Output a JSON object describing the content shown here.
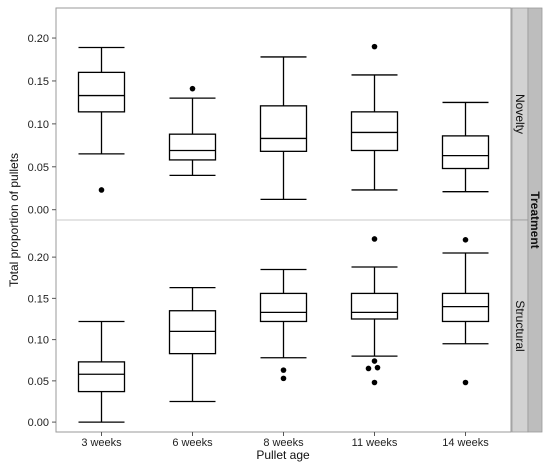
{
  "chart_data": {
    "type": "boxplot",
    "xlabel": "Pullet age",
    "ylabel": "Total proportion of pullets",
    "facet_label": "Treatment",
    "categories": [
      "3 weeks",
      "6 weeks",
      "8 weeks",
      "11 weeks",
      "14 weeks"
    ],
    "yticks": [
      "0.00",
      "0.05",
      "0.10",
      "0.15",
      "0.20"
    ],
    "grid": false,
    "panels": [
      {
        "name": "Novelty",
        "ylim": [
          -0.012,
          0.235
        ],
        "boxes": [
          {
            "category": "3 weeks",
            "whisker_low": 0.065,
            "q1": 0.114,
            "median": 0.133,
            "q3": 0.16,
            "whisker_high": 0.189,
            "outliers": [
              0.023
            ]
          },
          {
            "category": "6 weeks",
            "whisker_low": 0.04,
            "q1": 0.058,
            "median": 0.069,
            "q3": 0.088,
            "whisker_high": 0.13,
            "outliers": [
              0.141
            ]
          },
          {
            "category": "8 weeks",
            "whisker_low": 0.012,
            "q1": 0.068,
            "median": 0.083,
            "q3": 0.121,
            "whisker_high": 0.178,
            "outliers": []
          },
          {
            "category": "11 weeks",
            "whisker_low": 0.023,
            "q1": 0.069,
            "median": 0.09,
            "q3": 0.114,
            "whisker_high": 0.157,
            "outliers": [
              0.19
            ]
          },
          {
            "category": "14 weeks",
            "whisker_low": 0.021,
            "q1": 0.048,
            "median": 0.063,
            "q3": 0.086,
            "whisker_high": 0.125,
            "outliers": []
          }
        ]
      },
      {
        "name": "Structural",
        "ylim": [
          -0.012,
          0.245
        ],
        "boxes": [
          {
            "category": "3 weeks",
            "whisker_low": 0.0,
            "q1": 0.037,
            "median": 0.058,
            "q3": 0.073,
            "whisker_high": 0.122,
            "outliers": []
          },
          {
            "category": "6 weeks",
            "whisker_low": 0.025,
            "q1": 0.083,
            "median": 0.11,
            "q3": 0.135,
            "whisker_high": 0.163,
            "outliers": []
          },
          {
            "category": "8 weeks",
            "whisker_low": 0.078,
            "q1": 0.122,
            "median": 0.133,
            "q3": 0.156,
            "whisker_high": 0.185,
            "outliers": [
              0.063,
              0.053
            ]
          },
          {
            "category": "11 weeks",
            "whisker_low": 0.08,
            "q1": 0.125,
            "median": 0.133,
            "q3": 0.156,
            "whisker_high": 0.188,
            "outliers": [
              0.222,
              0.074,
              0.066,
              0.065,
              0.048
            ]
          },
          {
            "category": "14 weeks",
            "whisker_low": 0.095,
            "q1": 0.122,
            "median": 0.14,
            "q3": 0.156,
            "whisker_high": 0.205,
            "outliers": [
              0.221,
              0.048
            ]
          }
        ]
      }
    ]
  },
  "colors": {
    "box_stroke": "#000000",
    "frame": "#9a9a9a",
    "strip_inner": "#d2d2d2",
    "strip_outer": "#bdbdbd"
  }
}
